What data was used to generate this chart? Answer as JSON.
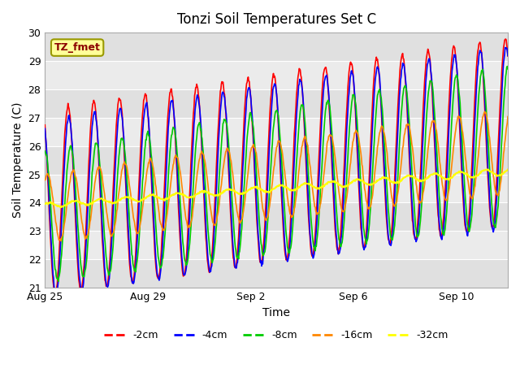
{
  "title": "Tonzi Soil Temperatures Set C",
  "xlabel": "Time",
  "ylabel": "Soil Temperature (C)",
  "ylim": [
    21.0,
    30.0
  ],
  "yticks": [
    21.0,
    22.0,
    23.0,
    24.0,
    25.0,
    26.0,
    27.0,
    28.0,
    29.0,
    30.0
  ],
  "annotation": "TZ_fmet",
  "bg_color": "#ffffff",
  "plot_bg_color": "#e8e8e8",
  "band_colors": [
    "#e0e0e0",
    "#ebebeb"
  ],
  "lines": [
    {
      "label": "-2cm",
      "color": "#ff0000",
      "lw": 1.2
    },
    {
      "label": "-4cm",
      "color": "#0000ff",
      "lw": 1.2
    },
    {
      "label": "-8cm",
      "color": "#00cc00",
      "lw": 1.2
    },
    {
      "label": "-16cm",
      "color": "#ff8800",
      "lw": 1.2
    },
    {
      "label": "-32cm",
      "color": "#ffff00",
      "lw": 1.5
    }
  ],
  "xtick_labels": [
    "Aug 25",
    "Aug 29",
    "Sep 2",
    "Sep 6",
    "Sep 10"
  ],
  "xtick_positions": [
    0,
    4,
    8,
    12,
    16
  ],
  "n_days": 18,
  "points_per_day": 48
}
